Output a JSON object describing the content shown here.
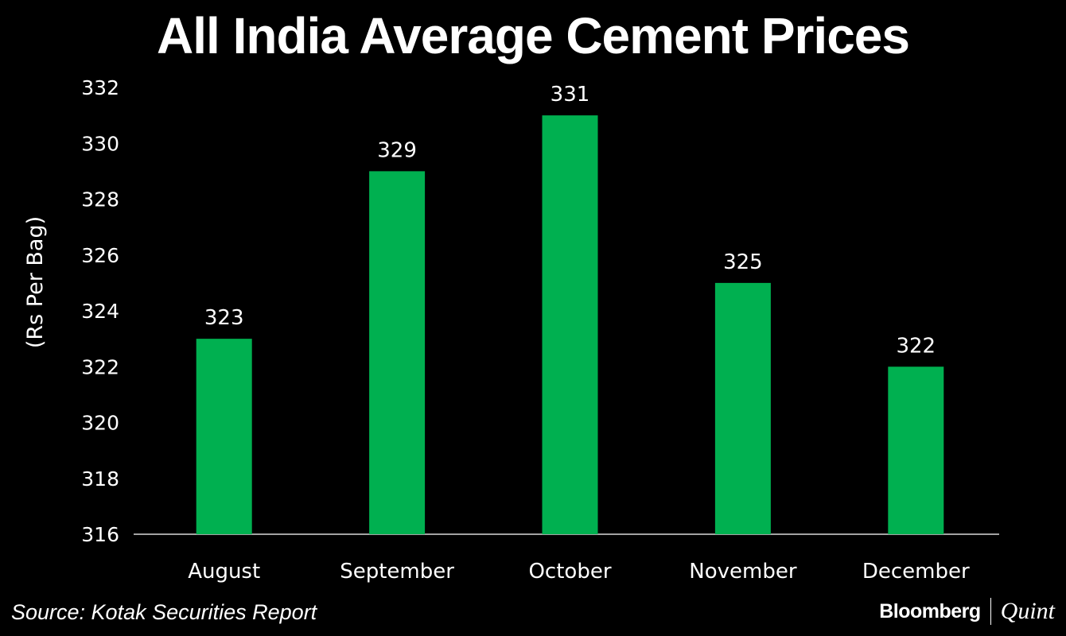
{
  "chart_data": {
    "type": "bar",
    "title": "All India Average Cement Prices",
    "xlabel": "",
    "ylabel": "(Rs Per Bag)",
    "categories": [
      "August",
      "September",
      "October",
      "November",
      "December"
    ],
    "values": [
      323,
      329,
      331,
      325,
      322
    ],
    "data_labels": [
      "323",
      "329",
      "331",
      "325",
      "322"
    ],
    "ylim": [
      316,
      332
    ],
    "yticks": [
      316,
      318,
      320,
      322,
      324,
      326,
      328,
      330,
      332
    ],
    "grid": false,
    "bar_color": "#00b050"
  },
  "source": "Source: Kotak Securities Report",
  "logo": {
    "brand": "Bloomberg",
    "sub": "Quint"
  }
}
